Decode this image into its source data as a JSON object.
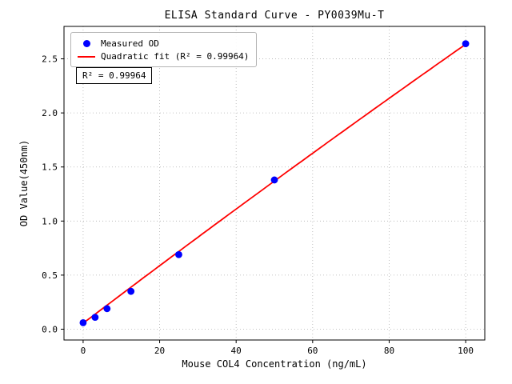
{
  "chart_data": {
    "type": "scatter",
    "title": "ELISA Standard Curve - PY0039Mu-T",
    "xlabel": "Mouse COL4 Concentration (ng/mL)",
    "ylabel": "OD Value(450nm)",
    "xlim": [
      -5,
      105
    ],
    "ylim": [
      -0.1,
      2.8
    ],
    "xticks": {
      "values": [
        0,
        20,
        40,
        60,
        80,
        100
      ],
      "labels": [
        "0",
        "20",
        "40",
        "60",
        "80",
        "100"
      ]
    },
    "yticks": {
      "values": [
        0.0,
        0.5,
        1.0,
        1.5,
        2.0,
        2.5
      ],
      "labels": [
        "0.0",
        "0.5",
        "1.0",
        "1.5",
        "2.0",
        "2.5"
      ]
    },
    "grid": true,
    "grid_style": "dotted",
    "annotation": "R² = 0.99964",
    "legend": {
      "position": "upper-left",
      "entries": [
        {
          "label": "Measured OD",
          "marker": "dot",
          "color": "#0000ff"
        },
        {
          "label": "Quadratic fit (R² = 0.99964)",
          "marker": "line",
          "color": "#ff0000"
        }
      ]
    },
    "series": [
      {
        "name": "Measured OD",
        "type": "scatter",
        "color": "#0000ff",
        "x": [
          0,
          3.125,
          6.25,
          12.5,
          25,
          50,
          100
        ],
        "y": [
          0.06,
          0.11,
          0.19,
          0.35,
          0.69,
          1.38,
          2.64
        ]
      },
      {
        "name": "Quadratic fit",
        "type": "quadratic-fit",
        "color": "#ff0000",
        "r_squared": 0.99964,
        "coefficients": {
          "a": -1e-05,
          "b": 0.0268,
          "c": 0.055
        },
        "x_range": [
          0,
          100
        ]
      }
    ]
  }
}
